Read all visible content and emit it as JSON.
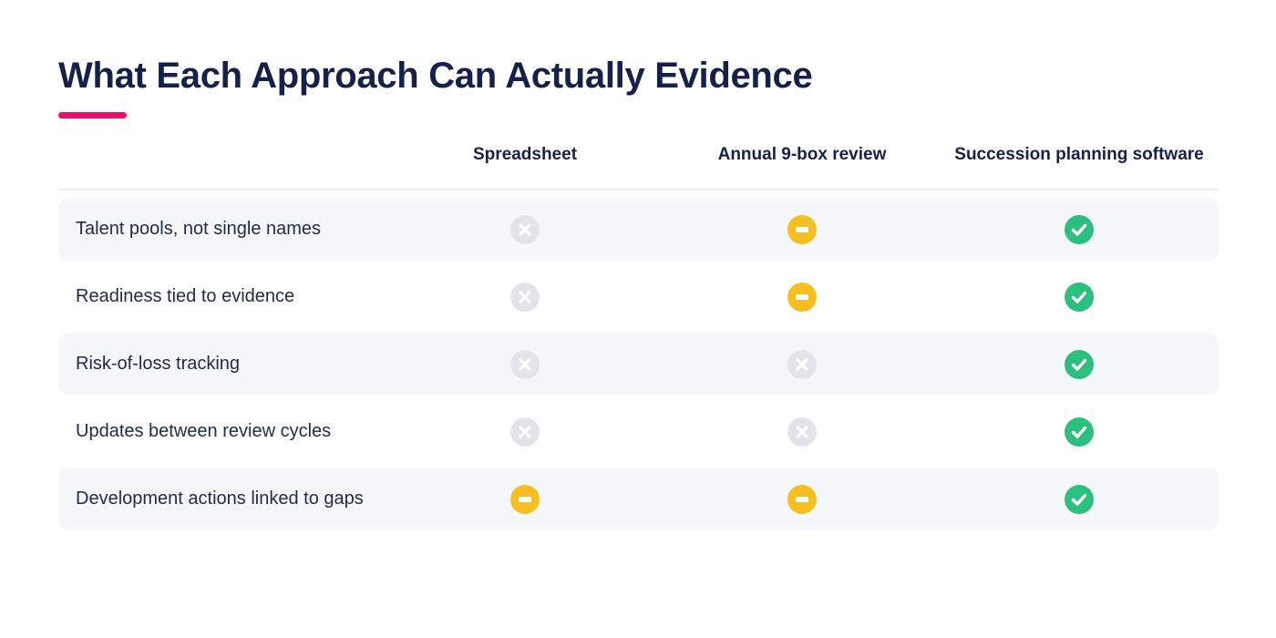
{
  "title": "What Each Approach Can Actually Evidence",
  "colors": {
    "accent": "#e8106b",
    "title": "#15214a",
    "yes": "#2dbf7e",
    "partial": "#f7be22",
    "no": "#e2e4ec",
    "row_shade": "#f6f7fb"
  },
  "columns": [
    "Spreadsheet",
    "Annual 9-box review",
    "Succession planning software"
  ],
  "rows": [
    {
      "label": "Talent pools, not single names",
      "status": [
        "no",
        "partial",
        "yes"
      ],
      "icons": [
        "x-circle-icon",
        "minus-circle-icon",
        "check-circle-icon"
      ]
    },
    {
      "label": "Readiness tied to evidence",
      "status": [
        "no",
        "partial",
        "yes"
      ],
      "icons": [
        "x-circle-icon",
        "minus-circle-icon",
        "check-circle-icon"
      ]
    },
    {
      "label": "Risk-of-loss tracking",
      "status": [
        "no",
        "no",
        "yes"
      ],
      "icons": [
        "x-circle-icon",
        "x-circle-icon",
        "check-circle-icon"
      ]
    },
    {
      "label": "Updates between review cycles",
      "status": [
        "no",
        "no",
        "yes"
      ],
      "icons": [
        "x-circle-icon",
        "x-circle-icon",
        "check-circle-icon"
      ]
    },
    {
      "label": "Development actions linked to gaps",
      "status": [
        "partial",
        "partial",
        "yes"
      ],
      "icons": [
        "minus-circle-icon",
        "minus-circle-icon",
        "check-circle-icon"
      ]
    }
  ]
}
